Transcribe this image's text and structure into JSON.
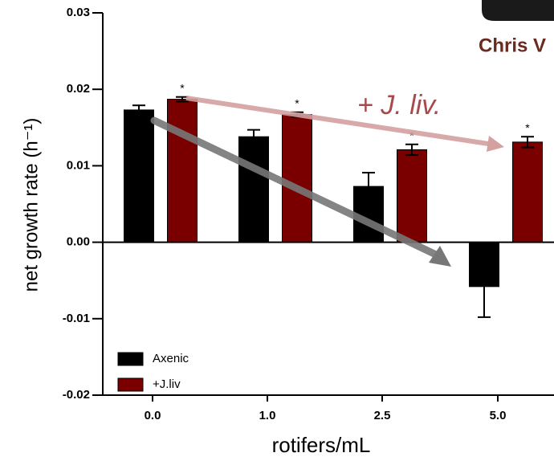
{
  "chart_data": {
    "type": "bar",
    "categories": [
      "0.0",
      "1.0",
      "2.5",
      "5.0"
    ],
    "series": [
      {
        "name": "Axenic",
        "color": "#000000",
        "values": [
          0.0173,
          0.0138,
          0.0073,
          -0.0058
        ],
        "errors": [
          0.0006,
          0.0009,
          0.0018,
          0.004
        ]
      },
      {
        "name": "+J.liv",
        "color": "#7a0000",
        "values": [
          0.0187,
          0.0167,
          0.0121,
          0.0131
        ],
        "errors": [
          0.0003,
          0.0003,
          0.0007,
          0.0007
        ],
        "markers": [
          "*",
          "*",
          "*",
          "*"
        ]
      }
    ],
    "ylim": [
      -0.02,
      0.03
    ],
    "yticks": [
      -0.02,
      -0.01,
      {
        "value": 0,
        "label": "0.00"
      },
      0.01,
      0.02,
      0.03
    ],
    "x_label": "rotifers/mL",
    "y_label": "net growth rate (h⁻¹)",
    "annotation": "+ J. liv.",
    "overlay_text": "Chris V",
    "legend": "lower left"
  }
}
